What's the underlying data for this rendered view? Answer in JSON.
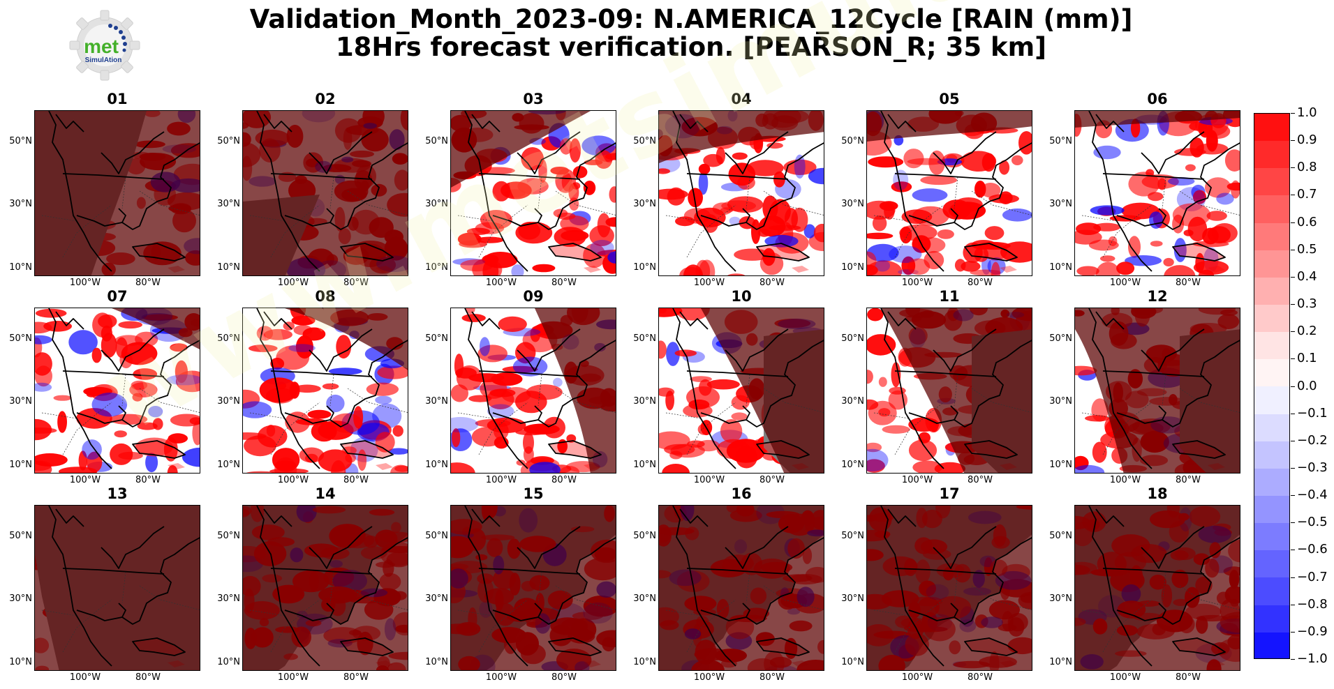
{
  "figure": {
    "title_line1": "Validation_Month_2023-09: N.AMERICA_12Cycle [RAIN (mm)]",
    "title_line2": "18Hrs forecast verification.  [PEARSON_R; 35 km]",
    "logo": {
      "text_main": "met",
      "text_sub": "SimulAtion",
      "icon": "gear-logo-icon"
    },
    "watermark": "www.metsimulation.com"
  },
  "map": {
    "lat_ticks": [
      "50°N",
      "30°N",
      "10°N"
    ],
    "lon_ticks": [
      "100°W",
      "80°W"
    ],
    "region": "North America",
    "colors": {
      "land_nodata": "#808080",
      "night_shade": "rgba(90,0,0,0.72)",
      "ocean_clear": "#ffffff",
      "positive": "#ff0000",
      "negative": "#0000ff",
      "coast": "#000000"
    }
  },
  "panels": [
    {
      "label": "01",
      "shade": "full",
      "terminator": "gray-left-with-wedge"
    },
    {
      "label": "02",
      "shade": "full",
      "terminator": "gray-bottom-left"
    },
    {
      "label": "03",
      "shade": "top-left",
      "terminator": "day"
    },
    {
      "label": "04",
      "shade": "top-left-cap",
      "terminator": "day"
    },
    {
      "label": "05",
      "shade": "top-cap",
      "terminator": "day"
    },
    {
      "label": "06",
      "shade": "top-thin-cap",
      "terminator": "day"
    },
    {
      "label": "07",
      "shade": "top-right-cap",
      "terminator": "day"
    },
    {
      "label": "08",
      "shade": "top-right",
      "terminator": "day"
    },
    {
      "label": "09",
      "shade": "right",
      "terminator": "day"
    },
    {
      "label": "10",
      "shade": "right-large",
      "terminator": "gray-right"
    },
    {
      "label": "11",
      "shade": "right-larger",
      "terminator": "gray-right"
    },
    {
      "label": "12",
      "shade": "most",
      "terminator": "gray-right"
    },
    {
      "label": "13",
      "shade": "full",
      "terminator": "gray-left-strip"
    },
    {
      "label": "14",
      "shade": "full",
      "terminator": "night"
    },
    {
      "label": "15",
      "shade": "full",
      "terminator": "night"
    },
    {
      "label": "16",
      "shade": "full",
      "terminator": "night"
    },
    {
      "label": "17",
      "shade": "full",
      "terminator": "night"
    },
    {
      "label": "18",
      "shade": "full",
      "terminator": "night"
    }
  ],
  "colorbar": {
    "labels": [
      "1.0",
      "0.9",
      "0.8",
      "0.7",
      "0.6",
      "0.5",
      "0.4",
      "0.3",
      "0.2",
      "0.1",
      "0.0",
      "−0.1",
      "−0.2",
      "−0.3",
      "−0.4",
      "−0.5",
      "−0.6",
      "−0.7",
      "−0.8",
      "−0.9",
      "−1.0"
    ],
    "colors": [
      "#ff1010",
      "#ff2a2a",
      "#ff4545",
      "#ff6060",
      "#ff7a7a",
      "#ff9595",
      "#ffb0b0",
      "#ffcaca",
      "#ffe4e4",
      "#fff4f4",
      "#f0f0ff",
      "#dcdcff",
      "#c4c4ff",
      "#acacff",
      "#9494ff",
      "#7c7cff",
      "#6464ff",
      "#4c4cff",
      "#3232ff",
      "#1414ff"
    ],
    "vmin": -1.0,
    "vmax": 1.0
  }
}
